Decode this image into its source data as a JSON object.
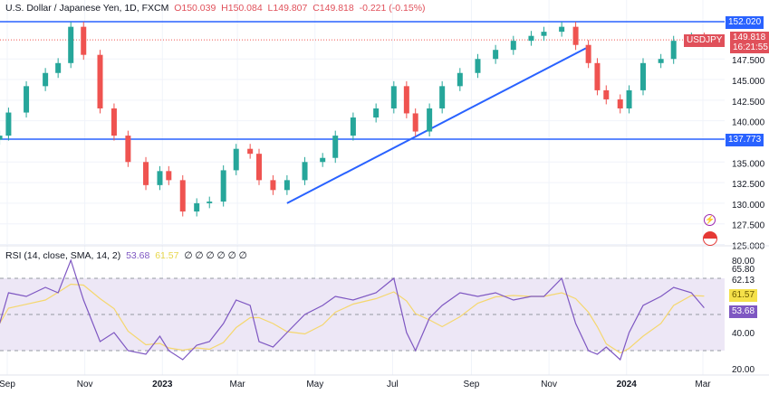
{
  "header": {
    "title": "U.S. Dollar / Japanese Yen, 1D, FXCM",
    "open": "O150.039",
    "high": "H150.084",
    "low": "L149.807",
    "close": "C149.818",
    "change": "-0.221 (-0.15%)"
  },
  "rsi_header": {
    "label": "RSI (14, close, SMA, 14, 2)",
    "rsi": "53.68",
    "sma": "61.57",
    "empty": "∅ ∅ ∅ ∅ ∅ ∅"
  },
  "tags": {
    "symbol": "USDJPY",
    "price": "149.818",
    "countdown": "16:21:55",
    "res": "152.020",
    "sup": "137.773",
    "rsi": "53.68",
    "rsi_sma": "61.57"
  },
  "colors": {
    "up": "#26a69a",
    "down": "#ef5350",
    "line": "#2962ff",
    "rsi": "#7e57c2",
    "rsi_sma": "#f5d76e",
    "band": "#ede7f6"
  },
  "chart_data": [
    {
      "type": "candlestick",
      "title": "U.S. Dollar / Japanese Yen, 1D, FXCM",
      "ylim": [
        125,
        153
      ],
      "yticks": [
        "147.500",
        "145.000",
        "142.500",
        "140.000",
        "135.000",
        "132.500",
        "130.000",
        "127.500",
        "125.000"
      ],
      "xticks": [
        "Sep",
        "Nov",
        "2023",
        "Mar",
        "May",
        "Jul",
        "Sep",
        "Nov",
        "2024",
        "Mar"
      ],
      "dates": [
        "2022-08-26",
        "2022-09-02",
        "2022-09-16",
        "2022-10-01",
        "2022-10-11",
        "2022-10-21",
        "2022-10-31",
        "2022-11-13",
        "2022-11-24",
        "2022-12-05",
        "2022-12-19",
        "2022-12-30",
        "2023-01-06",
        "2023-01-17",
        "2023-01-28",
        "2023-02-07",
        "2023-02-18",
        "2023-02-28",
        "2023-03-11",
        "2023-03-18",
        "2023-03-29",
        "2023-04-09",
        "2023-04-23",
        "2023-05-07",
        "2023-05-17",
        "2023-05-31",
        "2023-06-18",
        "2023-07-02",
        "2023-07-12",
        "2023-07-19",
        "2023-07-30",
        "2023-08-09",
        "2023-08-23",
        "2023-09-06",
        "2023-09-20",
        "2023-10-04",
        "2023-10-18",
        "2023-10-28",
        "2023-11-11",
        "2023-11-22",
        "2023-12-02",
        "2023-12-09",
        "2023-12-16",
        "2023-12-27",
        "2024-01-03",
        "2024-01-14",
        "2024-01-28",
        "2024-02-07",
        "2024-02-21",
        "2024-03-02"
      ],
      "close": [
        138.2,
        141,
        144.2,
        145.8,
        147,
        151.4,
        148,
        141.5,
        138.2,
        135,
        132.2,
        133.9,
        132.8,
        129,
        130,
        130.2,
        134,
        136.6,
        136,
        132.8,
        131.6,
        132.8,
        135,
        135.5,
        138.2,
        140.4,
        141.5,
        144.2,
        140.9,
        138.7,
        141.5,
        144.2,
        145.8,
        147.5,
        148.6,
        149.7,
        150.3,
        150.8,
        151.4,
        149.2,
        147,
        143.7,
        142.6,
        141.5,
        143.7,
        147,
        147.5,
        149.7,
        150.1,
        149.818
      ],
      "levels": [
        {
          "name": "resistance",
          "value": 152.02
        },
        {
          "name": "support",
          "value": 137.773
        }
      ],
      "trendline": {
        "from": {
          "date": "2023-04-09",
          "value": 130.0
        },
        "to": {
          "date": "2023-11-30",
          "value": 148.8
        }
      }
    },
    {
      "type": "line",
      "title": "RSI (14, close, SMA, 14, 2)",
      "ylim": [
        20,
        80
      ],
      "yticks": [
        "80.00",
        "65.80",
        "62.13",
        "40.00",
        "20.00"
      ],
      "bands": [
        30,
        50,
        70
      ],
      "rsi": [
        45,
        62,
        60,
        65,
        62,
        80,
        58,
        35,
        40,
        30,
        28,
        38,
        30,
        25,
        33,
        35,
        45,
        58,
        55,
        35,
        32,
        40,
        50,
        55,
        60,
        58,
        62,
        70,
        40,
        30,
        48,
        55,
        62,
        60,
        62,
        58,
        60,
        60,
        70,
        45,
        30,
        28,
        32,
        25,
        40,
        55,
        60,
        65,
        62,
        53.68
      ]
    }
  ]
}
